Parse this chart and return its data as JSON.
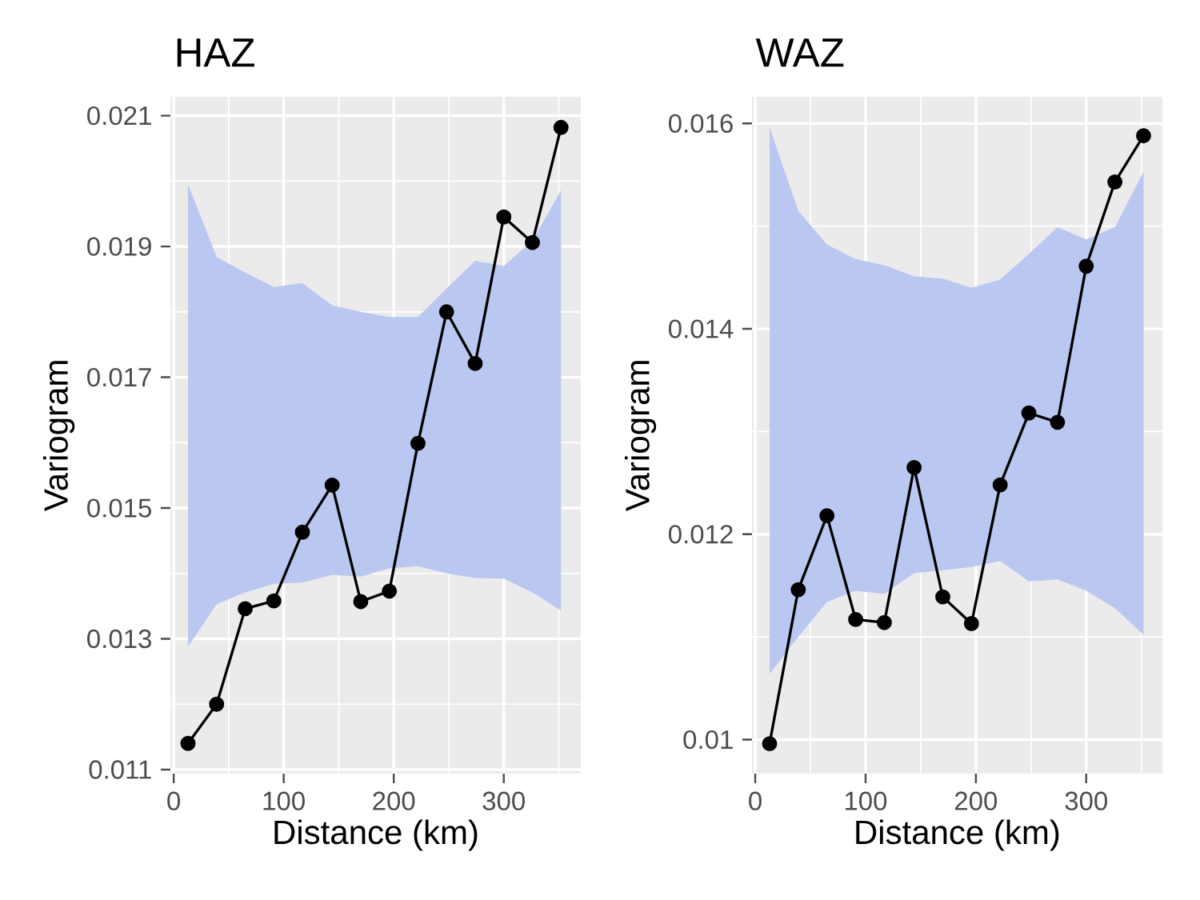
{
  "chart_data": [
    {
      "type": "line",
      "title": "HAZ",
      "xlabel": "Distance (km)",
      "ylabel": "Variogram",
      "x": [
        13,
        39,
        65,
        91,
        117,
        144,
        170,
        196,
        222,
        248,
        274,
        300,
        326,
        352
      ],
      "series": [
        {
          "color": "#000000",
          "values": [
            0.0114,
            0.012,
            0.01346,
            0.01358,
            0.01463,
            0.01535,
            0.01357,
            0.01373,
            0.01599,
            0.018,
            0.01721,
            0.01945,
            0.01906,
            0.02082
          ],
          "lower": [
            0.01288,
            0.01353,
            0.01371,
            0.01384,
            0.01386,
            0.01398,
            0.01395,
            0.01408,
            0.01411,
            0.014,
            0.01393,
            0.01392,
            0.01371,
            0.01343
          ],
          "upper": [
            0.01995,
            0.01884,
            0.0186,
            0.01838,
            0.01844,
            0.0181,
            0.018,
            0.01792,
            0.01792,
            0.01836,
            0.01878,
            0.0187,
            0.01909,
            0.01986
          ]
        }
      ],
      "xlim": [
        -3,
        370
      ],
      "ylim": [
        0.01094,
        0.02129
      ],
      "xticks": [
        0,
        100,
        200,
        300
      ],
      "yticks": [
        0.011,
        0.013,
        0.015,
        0.017,
        0.019,
        0.021
      ],
      "grid": true,
      "marker": "circle",
      "line_style": "solid"
    },
    {
      "type": "line",
      "title": "WAZ",
      "xlabel": "Distance (km)",
      "ylabel": "Variogram",
      "x": [
        13,
        39,
        65,
        91,
        117,
        144,
        170,
        196,
        222,
        248,
        274,
        300,
        326,
        352
      ],
      "series": [
        {
          "color": "#000000",
          "values": [
            0.00996,
            0.01146,
            0.01218,
            0.01117,
            0.01114,
            0.01265,
            0.01139,
            0.01113,
            0.01248,
            0.01318,
            0.01309,
            0.01461,
            0.01543,
            0.01588
          ],
          "lower": [
            0.01064,
            0.011,
            0.01134,
            0.01145,
            0.01142,
            0.01162,
            0.01165,
            0.01168,
            0.01174,
            0.01154,
            0.01156,
            0.01145,
            0.01128,
            0.01102
          ],
          "upper": [
            0.01596,
            0.01515,
            0.01482,
            0.01468,
            0.01462,
            0.01451,
            0.01449,
            0.0144,
            0.01448,
            0.01473,
            0.01499,
            0.01487,
            0.01499,
            0.01553
          ]
        }
      ],
      "xlim": [
        -3,
        369
      ],
      "ylim": [
        0.00967,
        0.01626
      ],
      "xticks": [
        0,
        100,
        200,
        300
      ],
      "yticks": [
        0.01,
        0.012,
        0.014,
        0.016
      ],
      "grid": true,
      "marker": "circle",
      "line_style": "solid"
    }
  ]
}
